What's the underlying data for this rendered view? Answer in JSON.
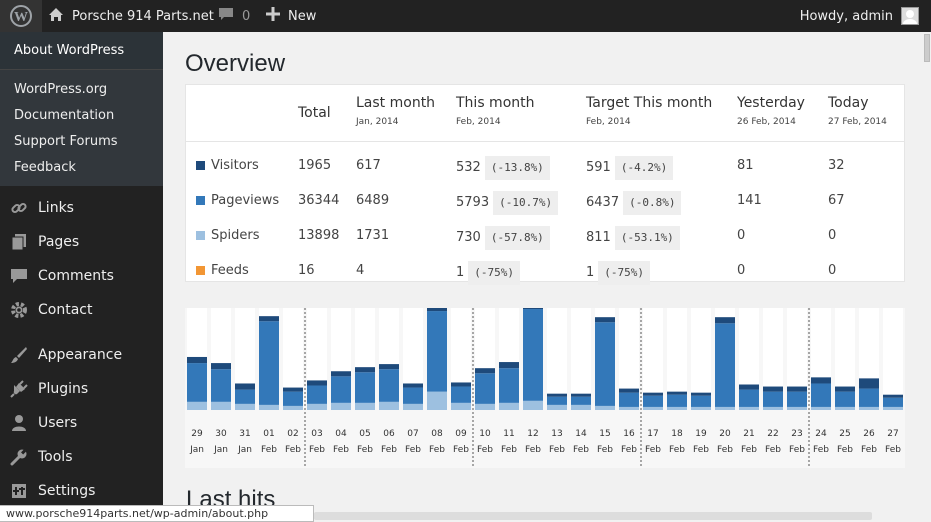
{
  "adminbar": {
    "site_name": "Porsche 914 Parts.net",
    "comments_count": "0",
    "new_label": "New",
    "greeting": "Howdy, admin"
  },
  "flyout": {
    "header": "About WordPress",
    "items": [
      "WordPress.org",
      "Documentation",
      "Support Forums",
      "Feedback"
    ]
  },
  "menu": [
    {
      "label": "Links",
      "icon": "link-icon"
    },
    {
      "label": "Pages",
      "icon": "pages-icon"
    },
    {
      "label": "Comments",
      "icon": "comments-icon"
    },
    {
      "label": "Contact",
      "icon": "gear-icon"
    },
    {
      "label": "Appearance",
      "icon": "brush-icon"
    },
    {
      "label": "Plugins",
      "icon": "plug-icon"
    },
    {
      "label": "Users",
      "icon": "user-icon"
    },
    {
      "label": "Tools",
      "icon": "wrench-icon"
    },
    {
      "label": "Settings",
      "icon": "settings-icon"
    }
  ],
  "page_title": "Overview",
  "section2_title": "Last hits",
  "table": {
    "headers": [
      {
        "label": "Total",
        "sub": ""
      },
      {
        "label": "Last month",
        "sub": "Jan, 2014"
      },
      {
        "label": "This month",
        "sub": "Feb, 2014"
      },
      {
        "label": "Target This month",
        "sub": "Feb, 2014"
      },
      {
        "label": "Yesterday",
        "sub": "26 Feb, 2014"
      },
      {
        "label": "Today",
        "sub": "27 Feb, 2014"
      }
    ],
    "rows": [
      {
        "name": "Visitors",
        "color": "#1e4a7b",
        "total": "1965",
        "last_month": "617",
        "this_month": "532",
        "this_pct": "(-13.8%)",
        "target": "591",
        "target_pct": "(-4.2%)",
        "yesterday": "81",
        "today": "32"
      },
      {
        "name": "Pageviews",
        "color": "#3378b9",
        "total": "36344",
        "last_month": "6489",
        "this_month": "5793",
        "this_pct": "(-10.7%)",
        "target": "6437",
        "target_pct": "(-0.8%)",
        "yesterday": "141",
        "today": "67"
      },
      {
        "name": "Spiders",
        "color": "#9dc0e0",
        "total": "13898",
        "last_month": "1731",
        "this_month": "730",
        "this_pct": "(-57.8%)",
        "target": "811",
        "target_pct": "(-53.1%)",
        "yesterday": "0",
        "today": "0"
      },
      {
        "name": "Feeds",
        "color": "#f29634",
        "total": "16",
        "last_month": "4",
        "this_month": "1",
        "this_pct": "(-75%)",
        "target": "1",
        "target_pct": "(-75%)",
        "yesterday": "0",
        "today": "0"
      }
    ]
  },
  "chart_data": {
    "type": "bar",
    "categories": [
      [
        "29",
        "Jan"
      ],
      [
        "30",
        "Jan"
      ],
      [
        "31",
        "Jan"
      ],
      [
        "01",
        "Feb"
      ],
      [
        "02",
        "Feb"
      ],
      [
        "03",
        "Feb"
      ],
      [
        "04",
        "Feb"
      ],
      [
        "05",
        "Feb"
      ],
      [
        "06",
        "Feb"
      ],
      [
        "07",
        "Feb"
      ],
      [
        "08",
        "Feb"
      ],
      [
        "09",
        "Feb"
      ],
      [
        "10",
        "Feb"
      ],
      [
        "11",
        "Feb"
      ],
      [
        "12",
        "Feb"
      ],
      [
        "13",
        "Feb"
      ],
      [
        "14",
        "Feb"
      ],
      [
        "15",
        "Feb"
      ],
      [
        "16",
        "Feb"
      ],
      [
        "17",
        "Feb"
      ],
      [
        "18",
        "Feb"
      ],
      [
        "19",
        "Feb"
      ],
      [
        "20",
        "Feb"
      ],
      [
        "21",
        "Feb"
      ],
      [
        "22",
        "Feb"
      ],
      [
        "23",
        "Feb"
      ],
      [
        "24",
        "Feb"
      ],
      [
        "25",
        "Feb"
      ],
      [
        "26",
        "Feb"
      ],
      [
        "27",
        "Feb"
      ]
    ],
    "max": 100,
    "spiders": [
      8,
      8,
      6,
      5,
      4,
      6,
      7,
      7,
      8,
      6,
      18,
      7,
      6,
      7,
      9,
      5,
      5,
      4,
      3,
      3,
      3,
      3,
      3,
      3,
      3,
      3,
      3,
      3,
      3,
      3
    ],
    "pageviews": [
      38,
      32,
      14,
      82,
      14,
      18,
      26,
      30,
      32,
      16,
      79,
      16,
      30,
      34,
      90,
      8,
      8,
      82,
      14,
      11,
      12,
      11,
      82,
      17,
      15,
      15,
      23,
      15,
      18,
      9
    ],
    "visitors": [
      6,
      6,
      6,
      5,
      4,
      5,
      5,
      5,
      5,
      4,
      4,
      4,
      5,
      6,
      6,
      3,
      3,
      5,
      4,
      3,
      3,
      3,
      6,
      5,
      5,
      5,
      6,
      5,
      10,
      3
    ],
    "separators_after": [
      4,
      11,
      18,
      25
    ],
    "colors": {
      "spiders": "#9dc0e0",
      "pageviews": "#3378b9",
      "visitors": "#1e4a7b",
      "bg": "#ffffff",
      "plot_bg": "#f7f7f7"
    }
  },
  "status_url": "www.porsche914parts.net/wp-admin/about.php"
}
